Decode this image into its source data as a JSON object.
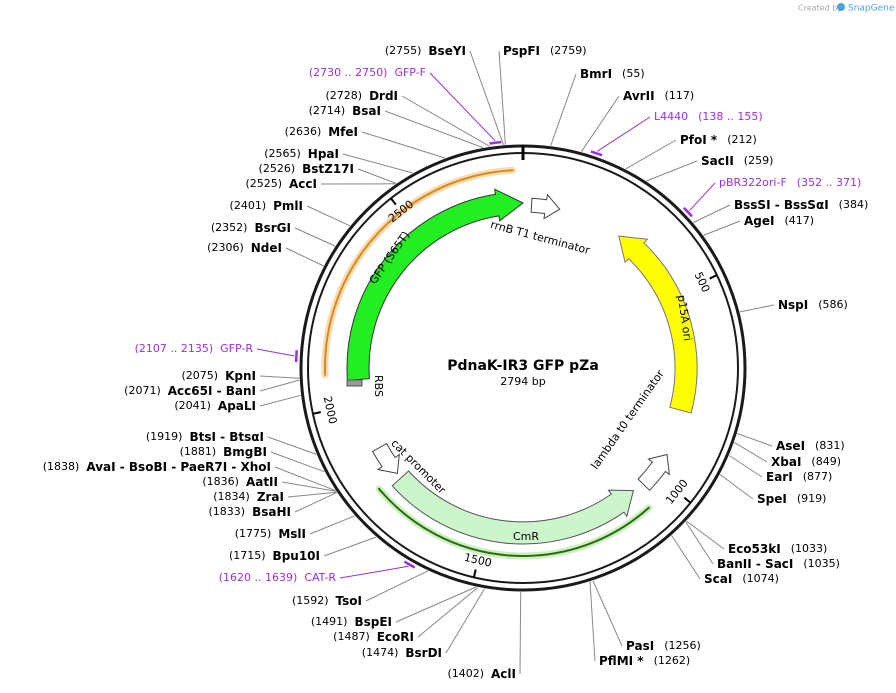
{
  "header": {
    "title": "PdnaK-IR3 GFP pZa",
    "size": "2794 bp"
  },
  "watermark": {
    "created_by": "Created by",
    "brand": "SnapGene"
  },
  "ticks": [
    "500",
    "1000",
    "1500",
    "2000",
    "2500"
  ],
  "features": [
    "rrnB T1 terminator",
    "GFP (S65T)",
    "RBS",
    "p15A ori",
    "lambda t0 terminator",
    "cat promoter",
    "CmR"
  ],
  "sites": [
    {
      "name": "BseYI",
      "pos": "(2755)"
    },
    {
      "name": "PspFI",
      "pos": "(2759)"
    },
    {
      "name": "BmrI",
      "pos": "(55)"
    },
    {
      "name": "AvrII",
      "pos": "(117)"
    },
    {
      "name": "PfoI *",
      "pos": "(212)"
    },
    {
      "name": "SacII",
      "pos": "(259)"
    },
    {
      "name": "BssSI - BssSαI",
      "pos": "(384)"
    },
    {
      "name": "AgeI",
      "pos": "(417)"
    },
    {
      "name": "NspI",
      "pos": "(586)"
    },
    {
      "name": "AseI",
      "pos": "(831)"
    },
    {
      "name": "XbaI",
      "pos": "(849)"
    },
    {
      "name": "EarI",
      "pos": "(877)"
    },
    {
      "name": "SpeI",
      "pos": "(919)"
    },
    {
      "name": "Eco53kI",
      "pos": "(1033)"
    },
    {
      "name": "BanII - SacI",
      "pos": "(1035)"
    },
    {
      "name": "ScaI",
      "pos": "(1074)"
    },
    {
      "name": "PasI",
      "pos": "(1256)"
    },
    {
      "name": "PflMI *",
      "pos": "(1262)"
    },
    {
      "name": "AclI",
      "pos": "(1402)"
    },
    {
      "name": "BsrDI",
      "pos": "(1474)"
    },
    {
      "name": "EcoRI",
      "pos": "(1487)"
    },
    {
      "name": "BspEI",
      "pos": "(1491)"
    },
    {
      "name": "TsoI",
      "pos": "(1592)"
    },
    {
      "name": "Bpu10I",
      "pos": "(1715)"
    },
    {
      "name": "MslI",
      "pos": "(1775)"
    },
    {
      "name": "BsaHI",
      "pos": "(1833)"
    },
    {
      "name": "ZraI",
      "pos": "(1834)"
    },
    {
      "name": "AatII",
      "pos": "(1836)"
    },
    {
      "name": "AvaI - BsoBI - PaeR7I - XhoI",
      "pos": "(1838)"
    },
    {
      "name": "BmgBI",
      "pos": "(1881)"
    },
    {
      "name": "BtsI - BtsαI",
      "pos": "(1919)"
    },
    {
      "name": "ApaLI",
      "pos": "(2041)"
    },
    {
      "name": "Acc65I - BanI",
      "pos": "(2071)"
    },
    {
      "name": "KpnI",
      "pos": "(2075)"
    },
    {
      "name": "NdeI",
      "pos": "(2306)"
    },
    {
      "name": "BsrGI",
      "pos": "(2352)"
    },
    {
      "name": "PmlI",
      "pos": "(2401)"
    },
    {
      "name": "AccI",
      "pos": "(2525)"
    },
    {
      "name": "BstZ17I",
      "pos": "(2526)"
    },
    {
      "name": "HpaI",
      "pos": "(2565)"
    },
    {
      "name": "MfeI",
      "pos": "(2636)"
    },
    {
      "name": "BsaI",
      "pos": "(2714)"
    },
    {
      "name": "DrdI",
      "pos": "(2728)"
    }
  ],
  "primers": [
    {
      "name": "L4440",
      "pos": "(138 .. 155)"
    },
    {
      "name": "pBR322ori-F",
      "pos": "(352 .. 371)"
    },
    {
      "name": "CAT-R",
      "pos": "(1620 .. 1639)"
    },
    {
      "name": "GFP-R",
      "pos": "(2107 .. 2135)"
    },
    {
      "name": "GFP-F",
      "pos": "(2730 .. 2750)"
    }
  ]
}
